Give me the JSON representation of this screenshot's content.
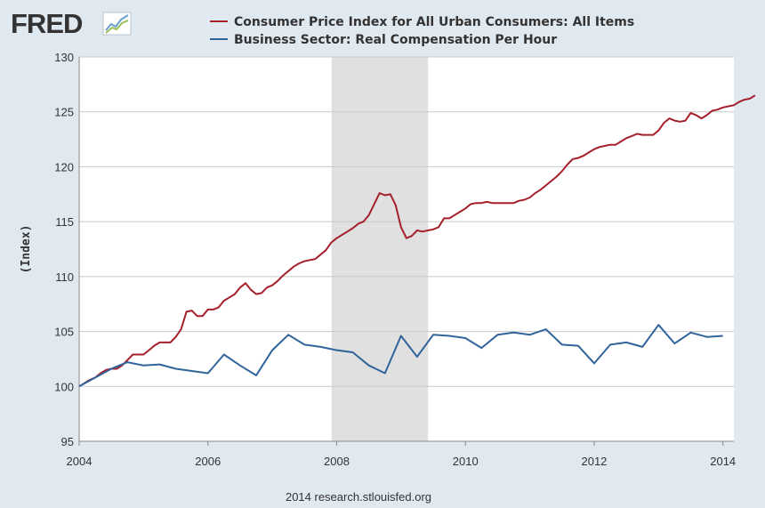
{
  "logo": {
    "text": "FRED"
  },
  "footer": {
    "text": "2014 research.stlouisfed.org"
  },
  "colors": {
    "cpi": "#a5202b",
    "comp": "#31649b",
    "recession": "#e0e0e0",
    "plot_bg": "#ffffff",
    "grid": "#c8c8c8",
    "page_bg": "#e1e9f0"
  },
  "chart_data": {
    "type": "line",
    "title": "",
    "xlabel": "",
    "ylabel": "(Index)",
    "xlim": [
      2004.0,
      2014.17
    ],
    "ylim": [
      95,
      130
    ],
    "x_ticks": [
      2004,
      2006,
      2008,
      2010,
      2012,
      2014
    ],
    "y_ticks": [
      95,
      100,
      105,
      110,
      115,
      120,
      125,
      130
    ],
    "grid": true,
    "legend_position": "top",
    "recession": {
      "start": 2007.92,
      "end": 2009.42
    },
    "series": [
      {
        "name": "Consumer Price Index for All Urban Consumers: All Items",
        "frequency": "monthly",
        "start": 2004.0,
        "step": 0.0833333,
        "color": "#a5202b",
        "values": [
          100.0,
          100.3,
          100.6,
          100.8,
          101.2,
          101.5,
          101.6,
          101.6,
          101.9,
          102.4,
          102.9,
          102.9,
          102.9,
          103.3,
          103.7,
          104.0,
          104.0,
          104.0,
          104.5,
          105.2,
          106.8,
          106.9,
          106.4,
          106.4,
          107.0,
          107.0,
          107.2,
          107.8,
          108.1,
          108.4,
          109.0,
          109.4,
          108.8,
          108.4,
          108.5,
          109.0,
          109.2,
          109.6,
          110.1,
          110.5,
          110.9,
          111.2,
          111.4,
          111.5,
          111.6,
          112.0,
          112.4,
          113.1,
          113.5,
          113.8,
          114.1,
          114.4,
          114.8,
          115.0,
          115.6,
          116.6,
          117.6,
          117.4,
          117.5,
          116.5,
          114.5,
          113.5,
          113.7,
          114.2,
          114.1,
          114.2,
          114.3,
          114.5,
          115.3,
          115.3,
          115.6,
          115.9,
          116.2,
          116.6,
          116.7,
          116.7,
          116.8,
          116.7,
          116.7,
          116.7,
          116.7,
          116.7,
          116.9,
          117.0,
          117.2,
          117.6,
          117.9,
          118.3,
          118.7,
          119.1,
          119.6,
          120.2,
          120.7,
          120.8,
          121.0,
          121.3,
          121.6,
          121.8,
          121.9,
          122.0,
          122.0,
          122.3,
          122.6,
          122.8,
          123.0,
          122.9,
          122.9,
          122.9,
          123.3,
          124.0,
          124.4,
          124.2,
          124.1,
          124.2,
          124.9,
          124.7,
          124.4,
          124.7,
          125.1,
          125.2,
          125.4,
          125.5,
          125.6,
          125.9,
          126.1,
          126.2,
          126.5
        ]
      },
      {
        "name": "Business Sector: Real Compensation Per Hour",
        "frequency": "quarterly",
        "start": 2004.0,
        "step": 0.25,
        "color": "#31649b",
        "values": [
          100.0,
          100.8,
          101.6,
          102.2,
          101.9,
          102.0,
          101.6,
          101.4,
          101.2,
          102.9,
          101.9,
          101.0,
          103.3,
          104.7,
          103.8,
          103.6,
          103.3,
          103.1,
          101.9,
          101.2,
          104.6,
          102.7,
          104.7,
          104.6,
          104.4,
          103.5,
          104.7,
          104.9,
          104.7,
          105.2,
          103.8,
          103.7,
          102.1,
          103.8,
          104.0,
          103.6,
          105.6,
          103.9,
          104.9,
          104.5,
          104.6
        ]
      }
    ]
  }
}
